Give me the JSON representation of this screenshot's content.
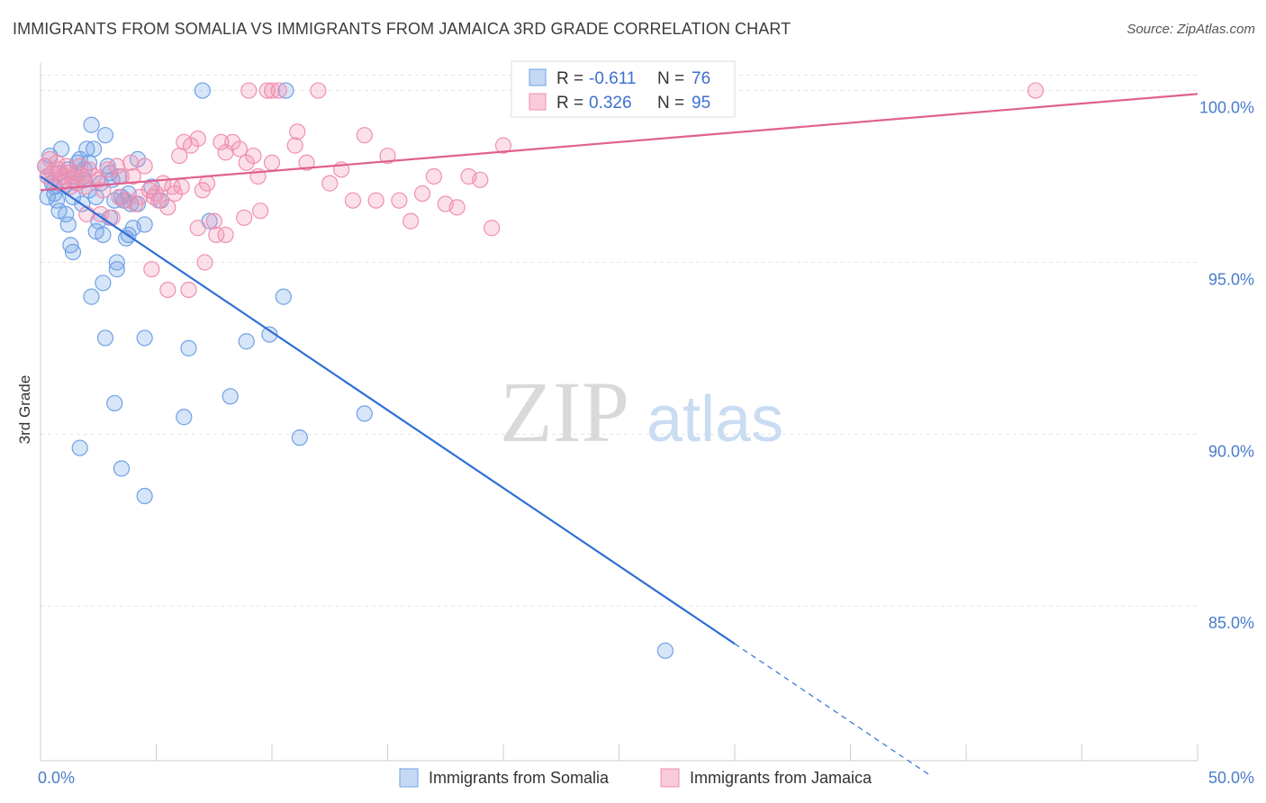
{
  "title": "IMMIGRANTS FROM SOMALIA VS IMMIGRANTS FROM JAMAICA 3RD GRADE CORRELATION CHART",
  "source": "Source: ZipAtlas.com",
  "watermark": {
    "zip": "ZIP",
    "atlas": "atlas"
  },
  "colors": {
    "somalia": "#6fa1e6",
    "somalia_line": "#2f6fd6",
    "jamaica": "#f08fb0",
    "jamaica_line": "#e0608f",
    "axis_label": "#4a7cc9",
    "grid": "#e3e3e3"
  },
  "legend": {
    "r_label": "R =",
    "n_label": "N =",
    "somalia": {
      "r": "-0.611",
      "n": "76"
    },
    "jamaica": {
      "r": "0.326",
      "n": "95"
    }
  },
  "chart_data": {
    "type": "scatter",
    "title": "IMMIGRANTS FROM SOMALIA VS IMMIGRANTS FROM JAMAICA 3RD GRADE CORRELATION CHART",
    "xlabel": "",
    "ylabel": "3rd Grade",
    "xlim": [
      0,
      50
    ],
    "ylim": [
      80.5,
      100.8
    ],
    "x_tick_labels": [
      "0.0%",
      "50.0%"
    ],
    "y_ticks": [
      85,
      90,
      95,
      100
    ],
    "y_tick_labels": [
      "85.0%",
      "90.0%",
      "95.0%",
      "100.0%"
    ],
    "grid": true,
    "legend_position": "top-center",
    "series": [
      {
        "name": "Immigrants from Somalia",
        "r": -0.611,
        "n": 76,
        "trend": {
          "x0": 0.0,
          "y0": 97.5,
          "x1": 30.0,
          "y1": 83.9,
          "dash_to_x": 38.5
        },
        "points": [
          [
            0.2,
            97.8
          ],
          [
            0.3,
            97.5
          ],
          [
            0.4,
            98.1
          ],
          [
            0.5,
            97.3
          ],
          [
            0.6,
            97.0
          ],
          [
            0.7,
            96.8
          ],
          [
            0.8,
            97.6
          ],
          [
            0.9,
            98.3
          ],
          [
            1.0,
            97.2
          ],
          [
            1.1,
            96.4
          ],
          [
            1.2,
            96.1
          ],
          [
            1.3,
            95.5
          ],
          [
            1.4,
            95.3
          ],
          [
            1.5,
            97.5
          ],
          [
            1.6,
            97.9
          ],
          [
            1.7,
            98.0
          ],
          [
            1.8,
            96.7
          ],
          [
            1.9,
            97.7
          ],
          [
            2.0,
            98.3
          ],
          [
            2.1,
            97.9
          ],
          [
            2.2,
            99.0
          ],
          [
            2.3,
            98.3
          ],
          [
            2.4,
            95.9
          ],
          [
            2.5,
            96.2
          ],
          [
            2.6,
            97.3
          ],
          [
            2.7,
            95.8
          ],
          [
            2.8,
            98.7
          ],
          [
            2.9,
            97.8
          ],
          [
            3.0,
            96.3
          ],
          [
            3.1,
            97.4
          ],
          [
            3.2,
            96.8
          ],
          [
            3.3,
            94.8
          ],
          [
            3.4,
            97.5
          ],
          [
            3.5,
            96.9
          ],
          [
            3.6,
            96.8
          ],
          [
            3.7,
            95.7
          ],
          [
            3.8,
            95.8
          ],
          [
            3.9,
            96.7
          ],
          [
            4.0,
            96.0
          ],
          [
            4.2,
            98.0
          ],
          [
            4.5,
            96.1
          ],
          [
            4.8,
            97.2
          ],
          [
            5.2,
            96.8
          ],
          [
            2.7,
            94.4
          ],
          [
            2.2,
            94.0
          ],
          [
            3.3,
            95.0
          ],
          [
            2.8,
            92.8
          ],
          [
            4.5,
            92.8
          ],
          [
            6.4,
            92.5
          ],
          [
            8.9,
            92.7
          ],
          [
            9.9,
            92.9
          ],
          [
            10.5,
            94.0
          ],
          [
            7.3,
            96.2
          ],
          [
            3.2,
            90.9
          ],
          [
            6.2,
            90.5
          ],
          [
            8.2,
            91.1
          ],
          [
            14.0,
            90.6
          ],
          [
            11.2,
            89.9
          ],
          [
            1.7,
            89.6
          ],
          [
            3.5,
            89.0
          ],
          [
            4.5,
            88.2
          ],
          [
            0.8,
            96.5
          ],
          [
            1.2,
            97.7
          ],
          [
            1.9,
            97.4
          ],
          [
            2.4,
            96.9
          ],
          [
            3.8,
            97.0
          ],
          [
            0.6,
            97.2
          ],
          [
            1.4,
            96.9
          ],
          [
            2.1,
            97.1
          ],
          [
            7.0,
            100.0
          ],
          [
            10.6,
            100.0
          ],
          [
            27.0,
            83.7
          ],
          [
            0.3,
            96.9
          ],
          [
            1.6,
            97.3
          ],
          [
            3.0,
            97.6
          ],
          [
            4.2,
            96.7
          ]
        ]
      },
      {
        "name": "Immigrants from Jamaica",
        "r": 0.326,
        "n": 95,
        "trend": {
          "x0": 0.0,
          "y0": 97.1,
          "x1": 50.0,
          "y1": 99.9
        },
        "points": [
          [
            0.2,
            97.8
          ],
          [
            0.3,
            97.5
          ],
          [
            0.4,
            98.0
          ],
          [
            0.5,
            97.6
          ],
          [
            0.6,
            97.4
          ],
          [
            0.7,
            97.9
          ],
          [
            0.8,
            97.7
          ],
          [
            0.9,
            97.3
          ],
          [
            1.0,
            97.5
          ],
          [
            1.1,
            97.8
          ],
          [
            1.2,
            97.6
          ],
          [
            1.3,
            97.2
          ],
          [
            1.4,
            97.4
          ],
          [
            1.5,
            97.6
          ],
          [
            1.6,
            97.3
          ],
          [
            1.7,
            97.8
          ],
          [
            1.8,
            97.5
          ],
          [
            1.9,
            97.2
          ],
          [
            2.0,
            96.4
          ],
          [
            2.1,
            97.7
          ],
          [
            2.3,
            97.5
          ],
          [
            2.5,
            97.4
          ],
          [
            2.7,
            97.1
          ],
          [
            2.9,
            97.7
          ],
          [
            3.1,
            96.3
          ],
          [
            3.3,
            97.8
          ],
          [
            3.5,
            97.5
          ],
          [
            3.7,
            96.8
          ],
          [
            3.9,
            97.9
          ],
          [
            4.1,
            96.7
          ],
          [
            4.3,
            96.9
          ],
          [
            4.5,
            97.8
          ],
          [
            4.7,
            97.1
          ],
          [
            4.9,
            96.9
          ],
          [
            5.1,
            96.8
          ],
          [
            5.3,
            97.3
          ],
          [
            5.5,
            96.6
          ],
          [
            5.7,
            97.2
          ],
          [
            6.0,
            98.1
          ],
          [
            6.2,
            98.5
          ],
          [
            6.5,
            98.4
          ],
          [
            6.8,
            98.6
          ],
          [
            7.0,
            97.1
          ],
          [
            7.2,
            97.3
          ],
          [
            7.5,
            96.2
          ],
          [
            7.8,
            98.5
          ],
          [
            8.0,
            98.2
          ],
          [
            8.3,
            98.5
          ],
          [
            8.6,
            98.3
          ],
          [
            8.9,
            97.9
          ],
          [
            9.2,
            98.1
          ],
          [
            9.5,
            96.5
          ],
          [
            9.8,
            100.0
          ],
          [
            10.0,
            97.9
          ],
          [
            10.3,
            100.0
          ],
          [
            11.0,
            98.4
          ],
          [
            11.5,
            97.9
          ],
          [
            12.0,
            100.0
          ],
          [
            12.5,
            97.3
          ],
          [
            13.0,
            97.7
          ],
          [
            13.5,
            96.8
          ],
          [
            14.0,
            98.7
          ],
          [
            14.5,
            96.8
          ],
          [
            15.0,
            98.1
          ],
          [
            15.5,
            96.8
          ],
          [
            16.0,
            96.2
          ],
          [
            16.5,
            97.0
          ],
          [
            17.0,
            97.5
          ],
          [
            17.5,
            96.7
          ],
          [
            18.0,
            96.6
          ],
          [
            18.5,
            97.5
          ],
          [
            19.0,
            97.4
          ],
          [
            19.5,
            96.0
          ],
          [
            20.0,
            98.4
          ],
          [
            21.0,
            100.0
          ],
          [
            26.0,
            100.0
          ],
          [
            43.0,
            100.0
          ],
          [
            9.0,
            100.0
          ],
          [
            10.0,
            100.0
          ],
          [
            11.1,
            98.8
          ],
          [
            4.8,
            94.8
          ],
          [
            5.5,
            94.2
          ],
          [
            6.4,
            94.2
          ],
          [
            7.1,
            95.0
          ],
          [
            7.6,
            95.8
          ],
          [
            8.0,
            95.8
          ],
          [
            6.1,
            97.2
          ],
          [
            5.8,
            97.0
          ],
          [
            2.6,
            96.4
          ],
          [
            3.4,
            96.9
          ],
          [
            4.0,
            97.5
          ],
          [
            5.0,
            97.0
          ],
          [
            6.8,
            96.0
          ],
          [
            8.8,
            96.3
          ],
          [
            9.4,
            97.5
          ]
        ]
      }
    ]
  },
  "bottom_legend": {
    "somalia": "Immigrants from Somalia",
    "jamaica": "Immigrants from Jamaica"
  }
}
